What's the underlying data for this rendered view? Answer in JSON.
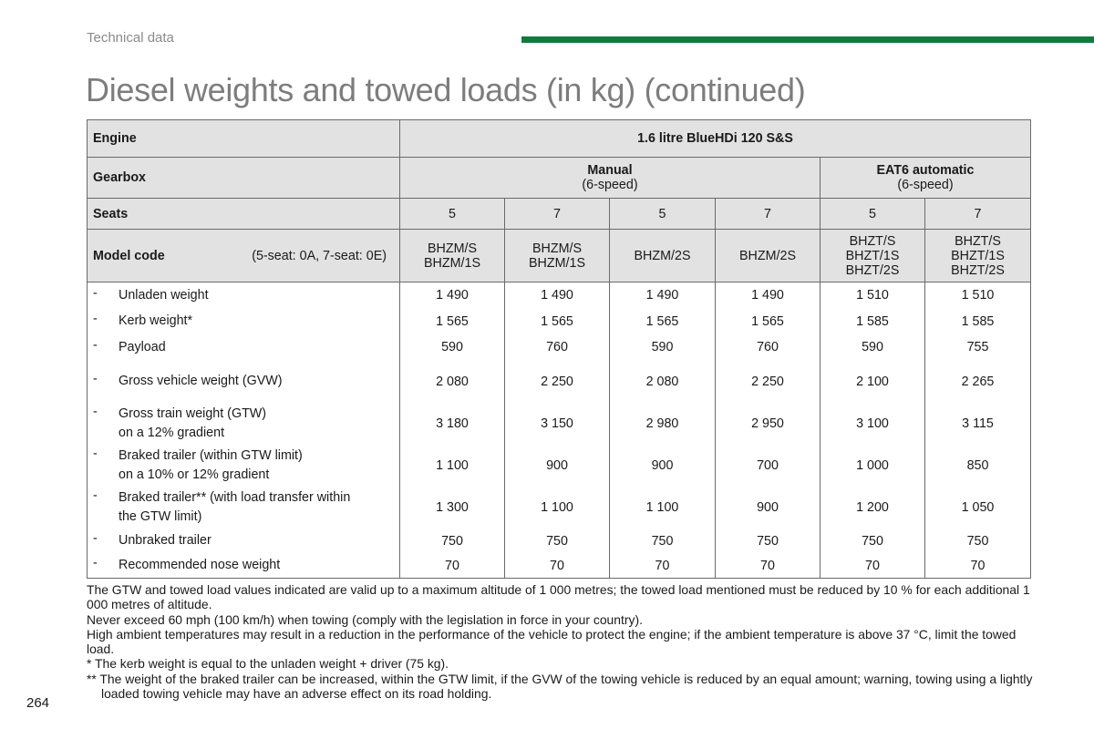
{
  "header": {
    "section_label": "Technical data",
    "accent_color": "#127a3e"
  },
  "title": "Diesel weights and towed loads (in kg) (continued)",
  "table": {
    "engine_label": "Engine",
    "engine_value": "1.6 litre BlueHDi 120 S&S",
    "gearbox_label": "Gearbox",
    "gearboxes": [
      {
        "name": "Manual",
        "detail": "(6-speed)"
      },
      {
        "name": "EAT6 automatic",
        "detail": "(6-speed)"
      }
    ],
    "seats_label": "Seats",
    "seats": [
      "5",
      "7",
      "5",
      "7",
      "5",
      "7"
    ],
    "model_code_label": "Model code",
    "model_code_note": "(5-seat: 0A, 7-seat: 0E)",
    "model_codes": [
      [
        "BHZM/S",
        "BHZM/1S"
      ],
      [
        "BHZM/S",
        "BHZM/1S"
      ],
      [
        "BHZM/2S"
      ],
      [
        "BHZM/2S"
      ],
      [
        "BHZT/S",
        "BHZT/1S",
        "BHZT/2S"
      ],
      [
        "BHZT/S",
        "BHZT/1S",
        "BHZT/2S"
      ]
    ],
    "rows": [
      {
        "label": [
          "Unladen weight"
        ],
        "values": [
          "1 490",
          "1 490",
          "1 490",
          "1 490",
          "1 510",
          "1 510"
        ]
      },
      {
        "label": [
          "Kerb weight*"
        ],
        "values": [
          "1 565",
          "1 565",
          "1 565",
          "1 565",
          "1 585",
          "1 585"
        ]
      },
      {
        "label": [
          "Payload"
        ],
        "values": [
          "590",
          "760",
          "590",
          "760",
          "590",
          "755"
        ]
      },
      {
        "label": [
          "Gross vehicle weight (GVW)"
        ],
        "values": [
          "2 080",
          "2 250",
          "2 080",
          "2 250",
          "2 100",
          "2 265"
        ]
      },
      {
        "label": [
          "Gross train weight (GTW)",
          "on a 12% gradient"
        ],
        "values": [
          "3 180",
          "3 150",
          "2 980",
          "2 950",
          "3 100",
          "3 115"
        ]
      },
      {
        "label": [
          "Braked trailer (within GTW limit)",
          "on a 10% or 12% gradient"
        ],
        "values": [
          "1 100",
          "900",
          "900",
          "700",
          "1 000",
          "850"
        ]
      },
      {
        "label": [
          "Braked trailer** (with load transfer within",
          "the GTW limit)"
        ],
        "values": [
          "1 300",
          "1 100",
          "1 100",
          "900",
          "1 200",
          "1 050"
        ]
      },
      {
        "label": [
          "Unbraked trailer"
        ],
        "values": [
          "750",
          "750",
          "750",
          "750",
          "750",
          "750"
        ]
      },
      {
        "label": [
          "Recommended nose weight"
        ],
        "values": [
          "70",
          "70",
          "70",
          "70",
          "70",
          "70"
        ]
      }
    ]
  },
  "notes": [
    "The GTW and towed load values indicated are valid up to a maximum altitude of 1 000 metres; the towed load mentioned must be reduced by 10 % for each additional 1 000 metres of altitude.",
    "Never exceed 60 mph (100 km/h) when towing (comply with the legislation in force in your country).",
    "High ambient temperatures may result in a reduction in the performance of the vehicle to protect the engine; if the ambient temperature is above 37 °C, limit the towed load.",
    "* The kerb weight is equal to the unladen weight + driver (75 kg).",
    "** The weight of the braked trailer can be increased, within the GTW limit, if the GVW of the towing vehicle is reduced by an equal amount; warning, towing using a lightly loaded towing vehicle may have an adverse effect on its road holding."
  ],
  "page_number": "264"
}
